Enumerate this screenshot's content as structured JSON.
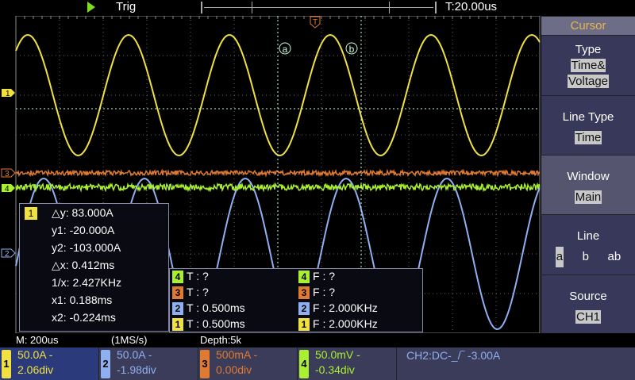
{
  "top": {
    "trigger_label": "Trig",
    "timebase": "T:20.00us",
    "trigger_marker": "T"
  },
  "cursor_labels": {
    "a": "a",
    "b": "b"
  },
  "channel_markers": {
    "ch1": "1",
    "ch2": "2",
    "ch3": "3",
    "ch4": "4"
  },
  "menu": {
    "title": "Cursor",
    "type": {
      "label": "Type",
      "value_line1": "Time&",
      "value_line2": "Voltage"
    },
    "line_type": {
      "label": "Line Type",
      "value": "Time"
    },
    "window": {
      "label": "Window",
      "value": "Main"
    },
    "line": {
      "label": "Line",
      "options": [
        "a",
        "b",
        "ab"
      ],
      "selected": "a"
    },
    "source": {
      "label": "Source",
      "value": "CH1"
    }
  },
  "measurement": {
    "channel": "1",
    "dy": "△y: 83.000A",
    "y1": "y1: -20.000A",
    "y2": "y2: -103.000A",
    "dx": "△x: 0.412ms",
    "inv_x": "1/x: 2.427KHz",
    "x1": "x1: 0.188ms",
    "x2": "x2: -0.224ms"
  },
  "freq_table": [
    {
      "ch": "4",
      "period": "T :    ?",
      "freq": "F :    ?"
    },
    {
      "ch": "3",
      "period": "T :    ?",
      "freq": "F :    ?"
    },
    {
      "ch": "2",
      "period": "T : 0.500ms",
      "freq": "F : 2.000KHz"
    },
    {
      "ch": "1",
      "period": "T : 0.500ms",
      "freq": "F : 2.000KHz"
    }
  ],
  "status": {
    "main": "M: 200us",
    "rate": "(1MS/s)",
    "depth": "Depth:5k"
  },
  "channels": [
    {
      "num": "1",
      "scale": "50.0A   -",
      "offset": "2.06div",
      "color": "#f0e040"
    },
    {
      "num": "2",
      "scale": "50.0A   -",
      "offset": "-1.98div",
      "color": "#8fb0f0"
    },
    {
      "num": "3",
      "scale": "500mA -",
      "offset": "0.00div",
      "color": "#e07a30"
    },
    {
      "num": "4",
      "scale": "50.0mV -",
      "offset": "-0.34div",
      "color": "#a8f030"
    }
  ],
  "trigger_info": "CH2:DC-_/‾ -3.00A",
  "colors": {
    "ch1": "#f0e040",
    "ch2": "#8fb0f0",
    "ch3": "#e07a30",
    "ch4": "#a8f030",
    "menu_bg": "#38385a",
    "menu_title": "#e8b64a"
  }
}
